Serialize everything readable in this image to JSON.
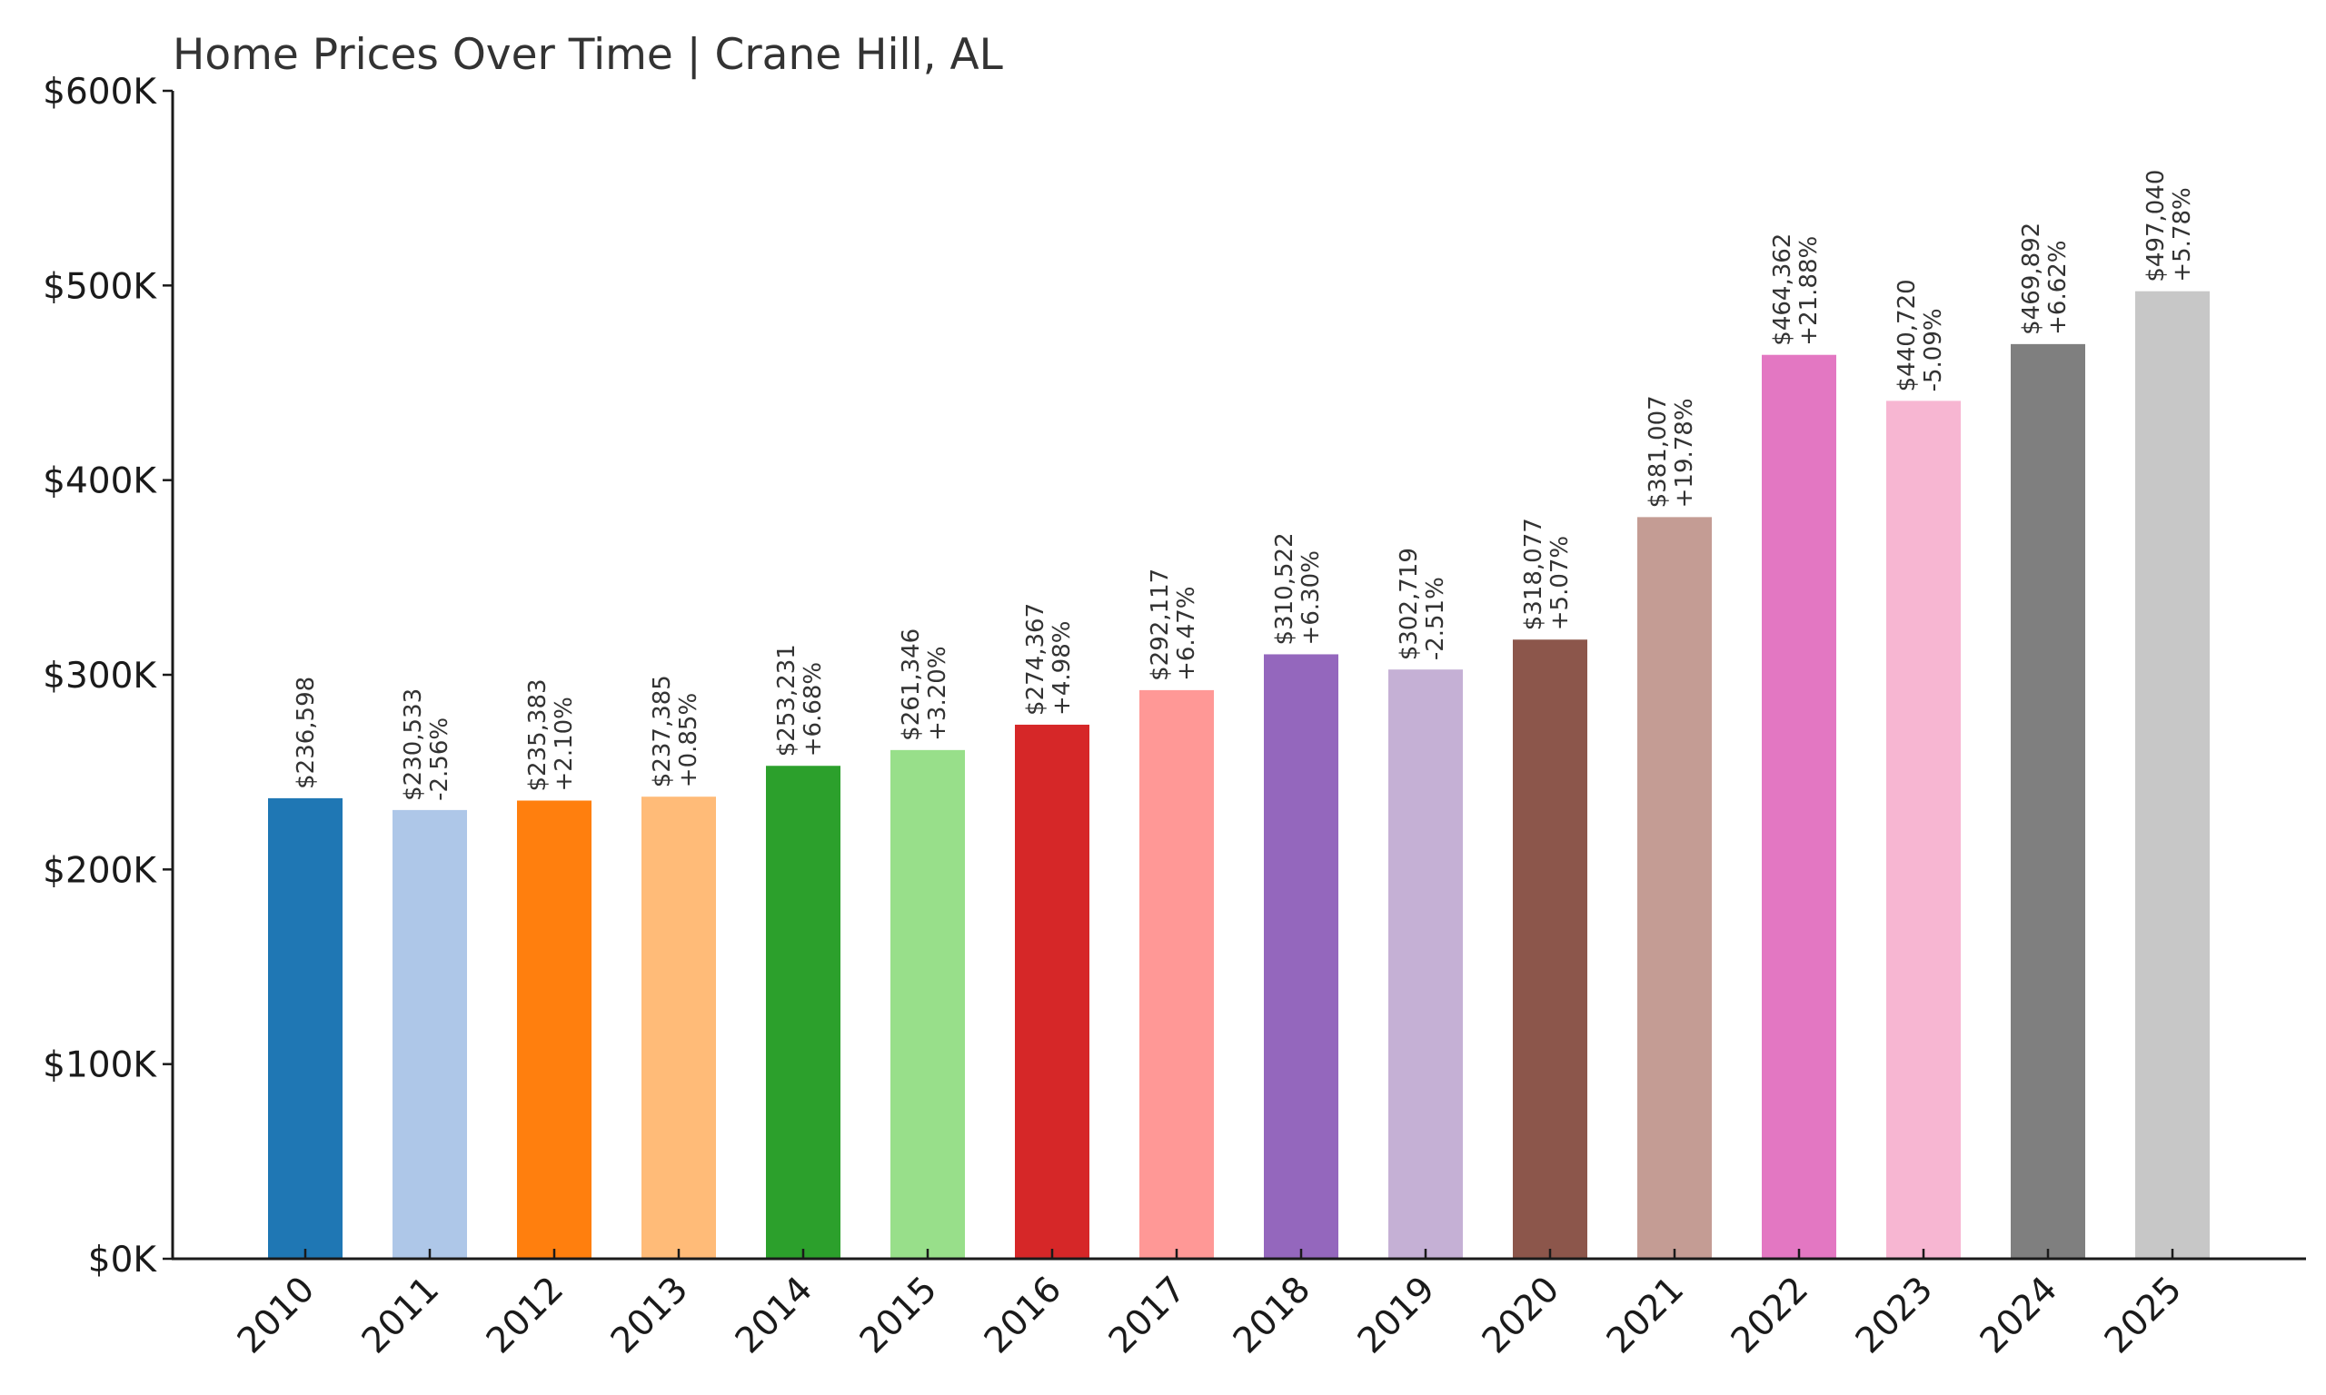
{
  "chart_data": {
    "type": "bar",
    "title": "Home Prices Over Time | Crane Hill, AL",
    "xlabel": "",
    "ylabel": "",
    "ylim": [
      0,
      600000
    ],
    "grid": false,
    "legend": "none",
    "yticks": [
      {
        "value": 0,
        "label": "$0K"
      },
      {
        "value": 100000,
        "label": "$100K"
      },
      {
        "value": 200000,
        "label": "$200K"
      },
      {
        "value": 300000,
        "label": "$300K"
      },
      {
        "value": 400000,
        "label": "$400K"
      },
      {
        "value": 500000,
        "label": "$500K"
      },
      {
        "value": 600000,
        "label": "$600K"
      }
    ],
    "categories": [
      "2010",
      "2011",
      "2012",
      "2013",
      "2014",
      "2015",
      "2016",
      "2017",
      "2018",
      "2019",
      "2020",
      "2021",
      "2022",
      "2023",
      "2024",
      "2025"
    ],
    "values": [
      236598,
      230533,
      235383,
      237385,
      253231,
      261346,
      274367,
      292117,
      310522,
      302719,
      318077,
      381007,
      464362,
      440720,
      469892,
      497040
    ],
    "value_labels": [
      "$236,598",
      "$230,533",
      "$235,383",
      "$237,385",
      "$253,231",
      "$261,346",
      "$274,367",
      "$292,117",
      "$310,522",
      "$302,719",
      "$318,077",
      "$381,007",
      "$464,362",
      "$440,720",
      "$469,892",
      "$497,040"
    ],
    "change_labels": [
      "",
      "-2.56%",
      "+2.10%",
      "+0.85%",
      "+6.68%",
      "+3.20%",
      "+4.98%",
      "+6.47%",
      "+6.30%",
      "-2.51%",
      "+5.07%",
      "+19.78%",
      "+21.88%",
      "-5.09%",
      "+6.62%",
      "+5.78%"
    ],
    "colors": [
      "#1f77b4",
      "#aec7e8",
      "#ff7f0e",
      "#ffbb78",
      "#2ca02c",
      "#98df8a",
      "#d62728",
      "#ff9896",
      "#9467bd",
      "#c5b0d5",
      "#8c564b",
      "#c49c94",
      "#e377c2",
      "#f7b6d2",
      "#7f7f7f",
      "#c7c7c7"
    ]
  }
}
